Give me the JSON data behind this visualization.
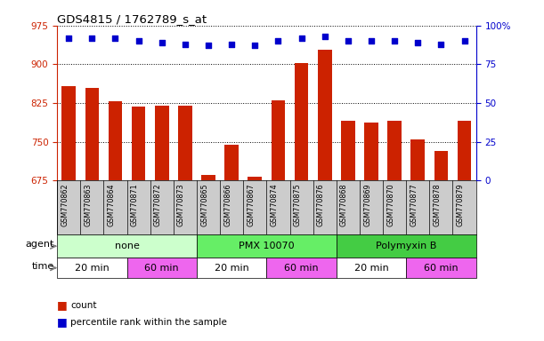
{
  "title": "GDS4815 / 1762789_s_at",
  "samples": [
    "GSM770862",
    "GSM770863",
    "GSM770864",
    "GSM770871",
    "GSM770872",
    "GSM770873",
    "GSM770865",
    "GSM770866",
    "GSM770867",
    "GSM770874",
    "GSM770875",
    "GSM770876",
    "GSM770868",
    "GSM770869",
    "GSM770870",
    "GSM770877",
    "GSM770878",
    "GSM770879"
  ],
  "counts": [
    857,
    855,
    828,
    818,
    820,
    820,
    686,
    744,
    682,
    830,
    903,
    928,
    790,
    787,
    790,
    754,
    732,
    790
  ],
  "percentiles": [
    92,
    92,
    92,
    90,
    89,
    88,
    87,
    88,
    87,
    90,
    92,
    93,
    90,
    90,
    90,
    89,
    88,
    90
  ],
  "ylim_left": [
    675,
    975
  ],
  "ylim_right": [
    0,
    100
  ],
  "yticks_left": [
    675,
    750,
    825,
    900,
    975
  ],
  "yticks_right": [
    0,
    25,
    50,
    75,
    100
  ],
  "bar_color": "#cc2200",
  "dot_color": "#0000cc",
  "agent_groups": [
    {
      "label": "none",
      "start": 0,
      "end": 6,
      "color": "#ccffcc"
    },
    {
      "label": "PMX 10070",
      "start": 6,
      "end": 12,
      "color": "#66ee66"
    },
    {
      "label": "Polymyxin B",
      "start": 12,
      "end": 18,
      "color": "#44cc44"
    }
  ],
  "time_groups": [
    {
      "label": "20 min",
      "start": 0,
      "end": 3,
      "color": "#ffffff"
    },
    {
      "label": "60 min",
      "start": 3,
      "end": 6,
      "color": "#ee66ee"
    },
    {
      "label": "20 min",
      "start": 6,
      "end": 9,
      "color": "#ffffff"
    },
    {
      "label": "60 min",
      "start": 9,
      "end": 12,
      "color": "#ee66ee"
    },
    {
      "label": "20 min",
      "start": 12,
      "end": 15,
      "color": "#ffffff"
    },
    {
      "label": "60 min",
      "start": 15,
      "end": 18,
      "color": "#ee66ee"
    }
  ],
  "sample_bg": "#cccccc",
  "bar_color_legend": "#cc2200",
  "dot_color_legend": "#0000cc",
  "percentile_y_axis_color": "#0000cc",
  "count_y_axis_color": "#cc2200"
}
